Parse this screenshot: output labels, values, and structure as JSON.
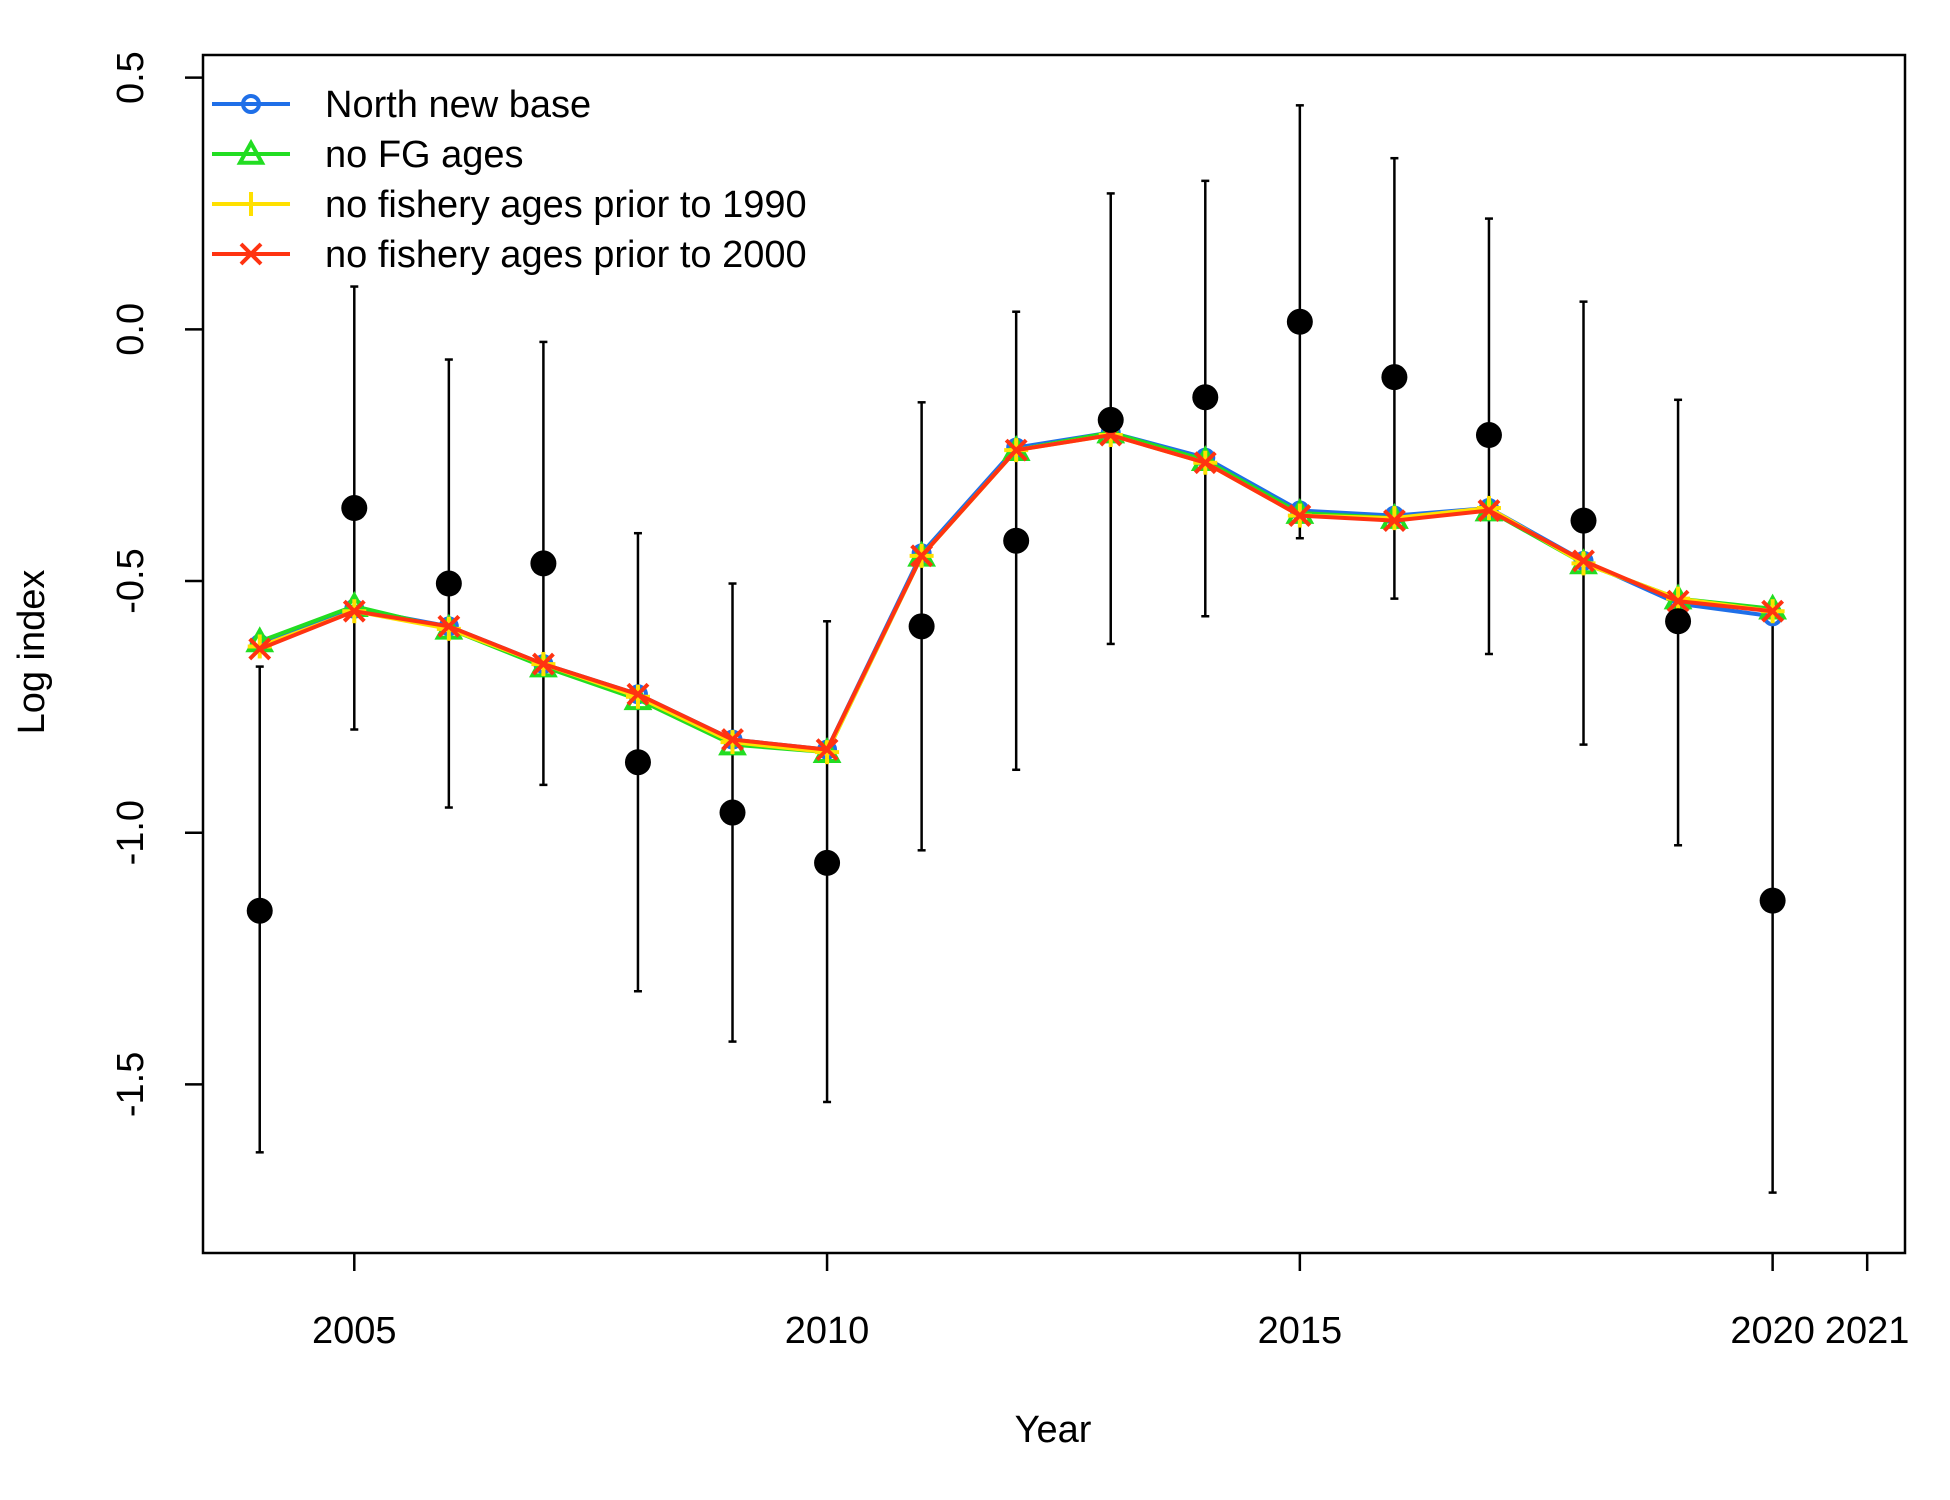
{
  "chart_data": {
    "type": "line",
    "xlabel": "Year",
    "ylabel": "Log index",
    "xlim": [
      2003.4,
      2021.4
    ],
    "ylim": [
      -1.835,
      0.545
    ],
    "x_ticks": [
      2005,
      2010,
      2015,
      2020,
      2021
    ],
    "y_ticks": [
      0.5,
      0.0,
      -0.5,
      -1.0,
      -1.5
    ],
    "y_tick_labels": [
      "0.5",
      "0.0",
      "-0.5",
      "-1.0",
      "-1.5"
    ],
    "legend_position": "top-left",
    "grid": false,
    "observed": {
      "x": [
        2004,
        2005,
        2006,
        2007,
        2008,
        2009,
        2010,
        2011,
        2012,
        2013,
        2014,
        2015,
        2016,
        2017,
        2018,
        2019,
        2020
      ],
      "y": [
        -1.155,
        -0.355,
        -0.505,
        -0.465,
        -0.86,
        -0.96,
        -1.06,
        -0.59,
        -0.42,
        -0.18,
        -0.135,
        0.015,
        -0.095,
        -0.21,
        -0.38,
        -0.58,
        -1.135
      ],
      "lower": [
        -1.635,
        -0.795,
        -0.95,
        -0.905,
        -1.315,
        -1.415,
        -1.535,
        -1.035,
        -0.875,
        -0.625,
        -0.57,
        -0.415,
        -0.535,
        -0.645,
        -0.825,
        -1.025,
        -1.715
      ],
      "upper": [
        -0.67,
        0.085,
        -0.06,
        -0.025,
        -0.405,
        -0.505,
        -0.58,
        -0.145,
        0.035,
        0.27,
        0.295,
        0.445,
        0.34,
        0.22,
        0.055,
        -0.14,
        -0.555
      ]
    },
    "series": [
      {
        "name": "North new base",
        "color": "#1f6fe8",
        "marker": "circle",
        "x": [
          2004,
          2005,
          2006,
          2007,
          2008,
          2009,
          2010,
          2011,
          2012,
          2013,
          2014,
          2015,
          2016,
          2017,
          2018,
          2019,
          2020
        ],
        "y": [
          -0.625,
          -0.555,
          -0.59,
          -0.665,
          -0.725,
          -0.815,
          -0.835,
          -0.445,
          -0.235,
          -0.205,
          -0.255,
          -0.36,
          -0.37,
          -0.355,
          -0.46,
          -0.545,
          -0.57
        ]
      },
      {
        "name": "no FG ages",
        "color": "#22dd22",
        "marker": "triangle",
        "x": [
          2004,
          2005,
          2006,
          2007,
          2008,
          2009,
          2010,
          2011,
          2012,
          2013,
          2014,
          2015,
          2016,
          2017,
          2018,
          2019,
          2020
        ],
        "y": [
          -0.62,
          -0.55,
          -0.595,
          -0.67,
          -0.735,
          -0.825,
          -0.84,
          -0.45,
          -0.24,
          -0.205,
          -0.26,
          -0.365,
          -0.375,
          -0.36,
          -0.465,
          -0.535,
          -0.555
        ]
      },
      {
        "name": "no fishery ages prior to 1990",
        "color": "#ffe000",
        "marker": "plus",
        "x": [
          2004,
          2005,
          2006,
          2007,
          2008,
          2009,
          2010,
          2011,
          2012,
          2013,
          2014,
          2015,
          2016,
          2017,
          2018,
          2019,
          2020
        ],
        "y": [
          -0.63,
          -0.56,
          -0.595,
          -0.665,
          -0.73,
          -0.82,
          -0.84,
          -0.45,
          -0.24,
          -0.21,
          -0.265,
          -0.37,
          -0.375,
          -0.355,
          -0.465,
          -0.535,
          -0.56
        ]
      },
      {
        "name": "no fishery ages prior to 2000",
        "color": "#ff3311",
        "marker": "x",
        "x": [
          2004,
          2005,
          2006,
          2007,
          2008,
          2009,
          2010,
          2011,
          2012,
          2013,
          2014,
          2015,
          2016,
          2017,
          2018,
          2019,
          2020
        ],
        "y": [
          -0.635,
          -0.56,
          -0.59,
          -0.665,
          -0.725,
          -0.815,
          -0.835,
          -0.45,
          -0.24,
          -0.21,
          -0.265,
          -0.37,
          -0.38,
          -0.36,
          -0.46,
          -0.54,
          -0.56
        ]
      }
    ]
  }
}
